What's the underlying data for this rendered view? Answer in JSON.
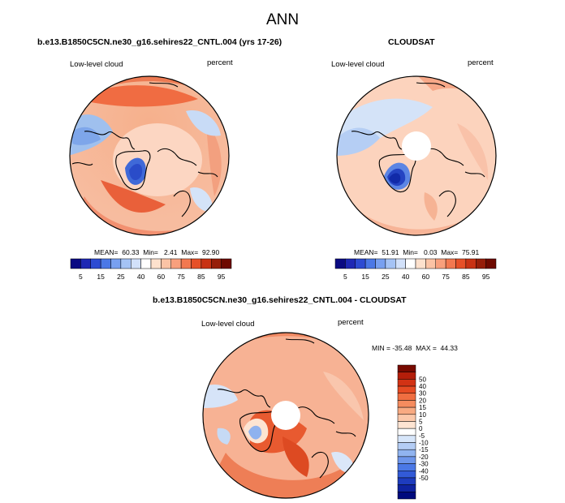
{
  "figure": {
    "title": "ANN"
  },
  "panels": [
    {
      "id": "model",
      "title": "b.e13.B1850C5CN.ne30_g16.sehires22_CNTL.004 (yrs 17-26)",
      "left_label": "Low-level cloud",
      "right_label": "percent",
      "stats_text": "MEAN=  60.33  Min=   2.41  Max=  92.90",
      "has_polar_hole": false
    },
    {
      "id": "obs",
      "title": "CLOUDSAT",
      "left_label": "Low-level cloud",
      "right_label": "percent",
      "stats_text": "MEAN=  51.91  Min=   0.03  Max=  75.91",
      "has_polar_hole": true
    },
    {
      "id": "diff",
      "title": "b.e13.B1850C5CN.ne30_g16.sehires22_CNTL.004 - CLOUDSAT",
      "left_label": "Low-level cloud",
      "right_label": "percent",
      "minmax_text": "MIN = -35.48  MAX =  44.33",
      "has_polar_hole": true
    }
  ],
  "colorbar_horizontal": {
    "colors": [
      "#0a0a82",
      "#1e28b4",
      "#2d4bd2",
      "#4b78e6",
      "#78a0f0",
      "#a5c3f5",
      "#d2e1fa",
      "#ffffff",
      "#fde1cd",
      "#fbc3a5",
      "#f8a07d",
      "#f27850",
      "#e65028",
      "#c83214",
      "#961e0a",
      "#6e0a00"
    ],
    "tick_labels": [
      "5",
      "15",
      "25",
      "40",
      "60",
      "75",
      "85",
      "95"
    ]
  },
  "colorbar_vertical": {
    "colors_top_to_bottom": [
      "#780a00",
      "#b41e0a",
      "#d23214",
      "#e64b23",
      "#f06e41",
      "#f58c5f",
      "#f8aa82",
      "#fbc8aa",
      "#fde4d2",
      "#ffffff",
      "#d7e6fa",
      "#b4cdf5",
      "#91b4f0",
      "#6e96eb",
      "#4b78e6",
      "#325ad7",
      "#1e3cbe",
      "#0f23a0",
      "#000a7d"
    ],
    "labels_top_to_bottom": [
      "50",
      "40",
      "30",
      "20",
      "15",
      "10",
      "5",
      "0",
      "-5",
      "-10",
      "-15",
      "-20",
      "-30",
      "-40",
      "-50"
    ]
  }
}
